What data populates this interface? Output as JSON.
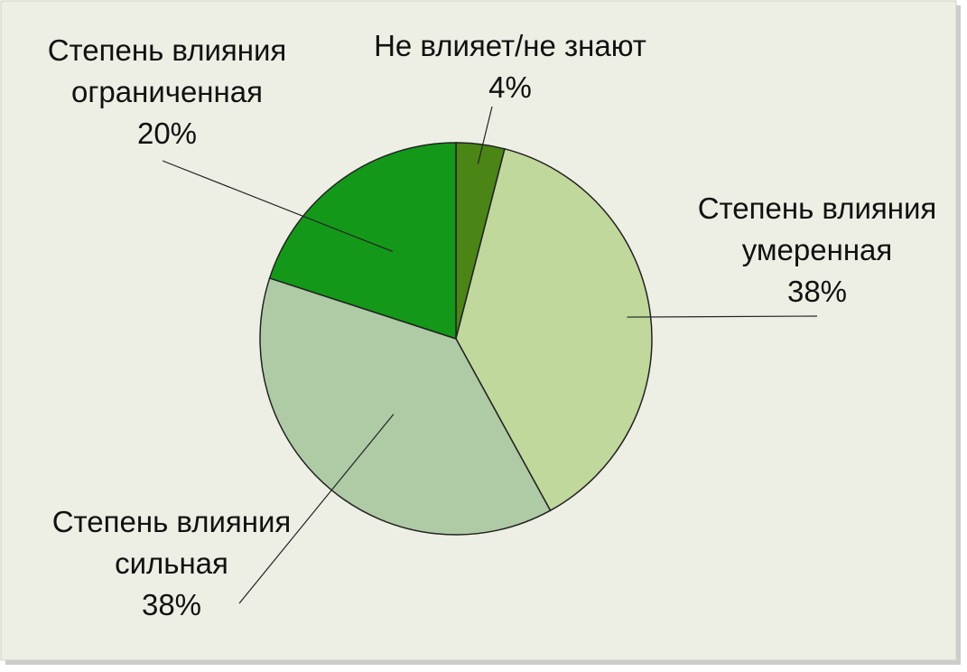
{
  "chart_data": {
    "type": "pie",
    "categories": [
      "Не влияет/не знают",
      "Степень влияния умеренная",
      "Степень влияния сильная",
      "Степень влияния ограниченная"
    ],
    "values": [
      4,
      38,
      38,
      20
    ],
    "value_labels": [
      "4%",
      "38%",
      "38%",
      "20%"
    ],
    "colors": [
      "#4a8516",
      "#c0d89c",
      "#aecba5",
      "#14981a"
    ]
  }
}
